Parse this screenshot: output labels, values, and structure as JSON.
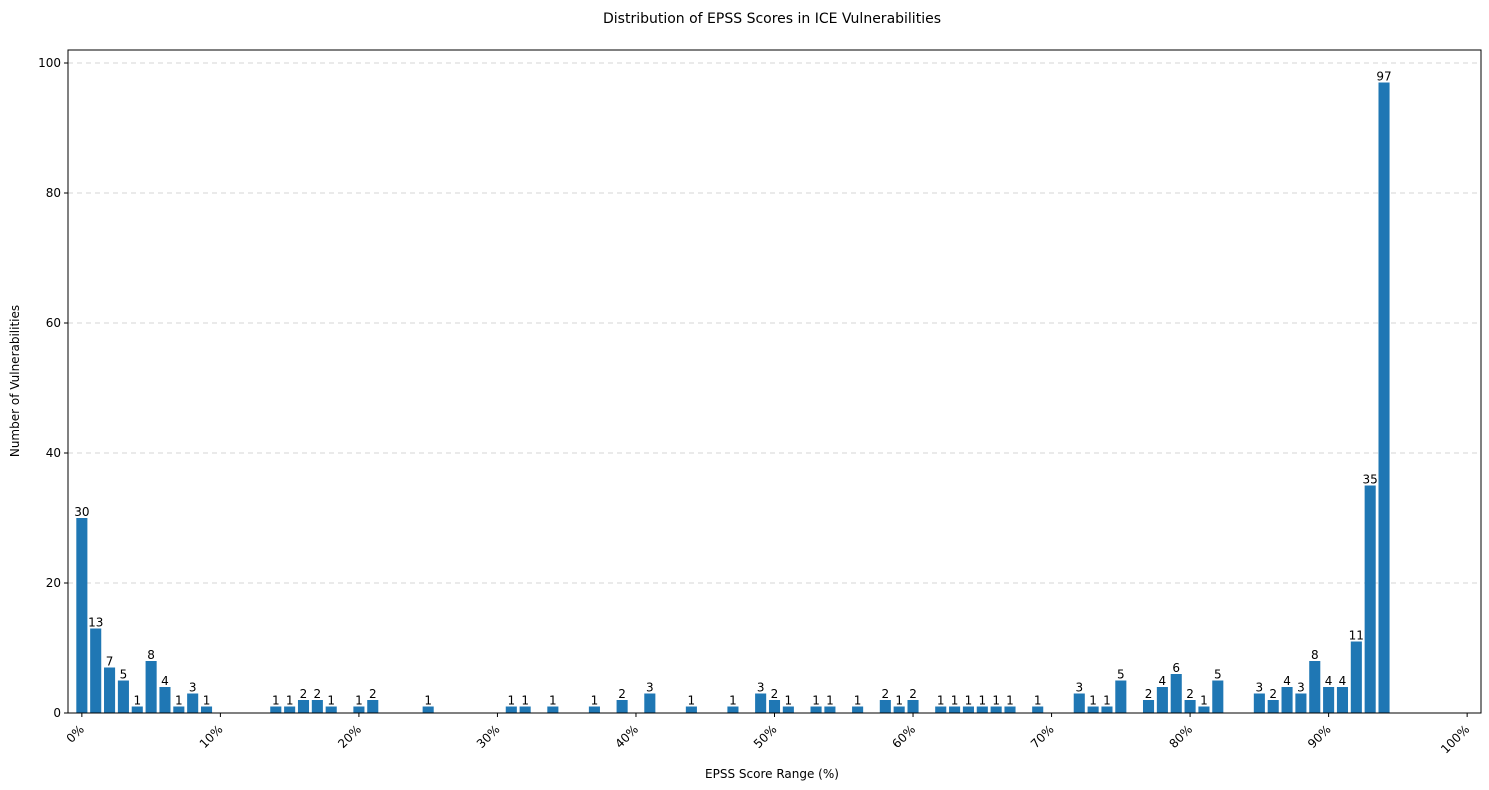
{
  "chart_data": {
    "type": "bar",
    "title": "Distribution of EPSS Scores in ICE Vulnerabilities",
    "xlabel": "EPSS Score Range (%)",
    "ylabel": "Number of Vulnerabilities",
    "xlim": [
      -1,
      101
    ],
    "ylim": [
      0,
      102
    ],
    "x_ticks": [
      0,
      10,
      20,
      30,
      40,
      50,
      60,
      70,
      80,
      90,
      100
    ],
    "x_tick_labels": [
      "0%",
      "10%",
      "20%",
      "30%",
      "40%",
      "50%",
      "60%",
      "70%",
      "80%",
      "90%",
      "100%"
    ],
    "y_ticks": [
      0,
      20,
      40,
      60,
      80,
      100
    ],
    "y_tick_labels": [
      "0",
      "20",
      "40",
      "60",
      "80",
      "100"
    ],
    "grid": "y-dashed",
    "bar_color": "#1f77b4",
    "bars": [
      {
        "x": 0,
        "value": 30
      },
      {
        "x": 1,
        "value": 13
      },
      {
        "x": 2,
        "value": 7
      },
      {
        "x": 3,
        "value": 5
      },
      {
        "x": 4,
        "value": 1
      },
      {
        "x": 5,
        "value": 8
      },
      {
        "x": 6,
        "value": 4
      },
      {
        "x": 7,
        "value": 1
      },
      {
        "x": 8,
        "value": 3
      },
      {
        "x": 9,
        "value": 1
      },
      {
        "x": 14,
        "value": 1
      },
      {
        "x": 15,
        "value": 1
      },
      {
        "x": 16,
        "value": 2
      },
      {
        "x": 17,
        "value": 2
      },
      {
        "x": 18,
        "value": 1
      },
      {
        "x": 20,
        "value": 1
      },
      {
        "x": 21,
        "value": 2
      },
      {
        "x": 25,
        "value": 1
      },
      {
        "x": 31,
        "value": 1
      },
      {
        "x": 32,
        "value": 1
      },
      {
        "x": 34,
        "value": 1
      },
      {
        "x": 37,
        "value": 1
      },
      {
        "x": 39,
        "value": 2
      },
      {
        "x": 41,
        "value": 3
      },
      {
        "x": 44,
        "value": 1
      },
      {
        "x": 47,
        "value": 1
      },
      {
        "x": 49,
        "value": 3
      },
      {
        "x": 50,
        "value": 2
      },
      {
        "x": 51,
        "value": 1
      },
      {
        "x": 53,
        "value": 1
      },
      {
        "x": 54,
        "value": 1
      },
      {
        "x": 56,
        "value": 1
      },
      {
        "x": 58,
        "value": 2
      },
      {
        "x": 59,
        "value": 1
      },
      {
        "x": 60,
        "value": 2
      },
      {
        "x": 62,
        "value": 1
      },
      {
        "x": 63,
        "value": 1
      },
      {
        "x": 64,
        "value": 1
      },
      {
        "x": 65,
        "value": 1
      },
      {
        "x": 66,
        "value": 1
      },
      {
        "x": 67,
        "value": 1
      },
      {
        "x": 69,
        "value": 1
      },
      {
        "x": 72,
        "value": 3
      },
      {
        "x": 73,
        "value": 1
      },
      {
        "x": 74,
        "value": 1
      },
      {
        "x": 75,
        "value": 5
      },
      {
        "x": 77,
        "value": 2
      },
      {
        "x": 78,
        "value": 4
      },
      {
        "x": 79,
        "value": 6
      },
      {
        "x": 80,
        "value": 2
      },
      {
        "x": 81,
        "value": 1
      },
      {
        "x": 82,
        "value": 5
      },
      {
        "x": 85,
        "value": 3
      },
      {
        "x": 86,
        "value": 2
      },
      {
        "x": 87,
        "value": 4
      },
      {
        "x": 88,
        "value": 3
      },
      {
        "x": 89,
        "value": 8
      },
      {
        "x": 90,
        "value": 4
      },
      {
        "x": 91,
        "value": 4
      },
      {
        "x": 92,
        "value": 11
      },
      {
        "x": 93,
        "value": 35
      },
      {
        "x": 94,
        "value": 97
      }
    ]
  }
}
